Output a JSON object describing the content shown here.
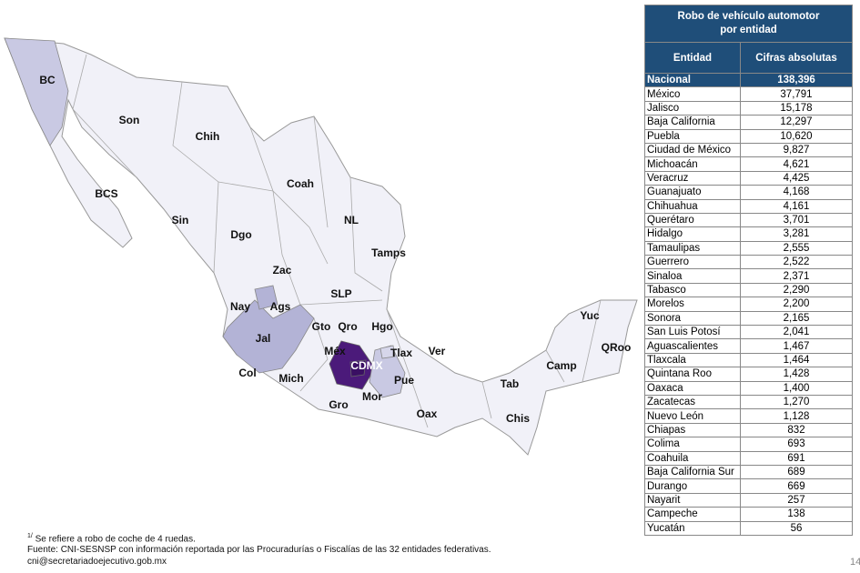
{
  "map": {
    "labels": [
      {
        "id": "bc",
        "text": "BC"
      },
      {
        "id": "son",
        "text": "Son"
      },
      {
        "id": "chih",
        "text": "Chih"
      },
      {
        "id": "bcs",
        "text": "BCS"
      },
      {
        "id": "coah",
        "text": "Coah"
      },
      {
        "id": "sin",
        "text": "Sin"
      },
      {
        "id": "dgo",
        "text": "Dgo"
      },
      {
        "id": "nl",
        "text": "NL"
      },
      {
        "id": "tamps",
        "text": "Tamps"
      },
      {
        "id": "zac",
        "text": "Zac"
      },
      {
        "id": "slp",
        "text": "SLP"
      },
      {
        "id": "nay",
        "text": "Nay"
      },
      {
        "id": "ags",
        "text": "Ags"
      },
      {
        "id": "gto",
        "text": "Gto"
      },
      {
        "id": "qro",
        "text": "Qro"
      },
      {
        "id": "hgo",
        "text": "Hgo"
      },
      {
        "id": "jal",
        "text": "Jal"
      },
      {
        "id": "mex",
        "text": "Méx"
      },
      {
        "id": "tlax",
        "text": "Tlax"
      },
      {
        "id": "ver",
        "text": "Ver"
      },
      {
        "id": "yuc",
        "text": "Yuc"
      },
      {
        "id": "qroo",
        "text": "QRoo"
      },
      {
        "id": "cdmx",
        "text": "CDMX"
      },
      {
        "id": "col",
        "text": "Col"
      },
      {
        "id": "mich",
        "text": "Mich"
      },
      {
        "id": "camp",
        "text": "Camp"
      },
      {
        "id": "pue",
        "text": "Pue"
      },
      {
        "id": "mor",
        "text": "Mor"
      },
      {
        "id": "tab",
        "text": "Tab"
      },
      {
        "id": "gro",
        "text": "Gro"
      },
      {
        "id": "oax",
        "text": "Oax"
      },
      {
        "id": "chis",
        "text": "Chis"
      }
    ],
    "colors": {
      "base": "#f1f1f8",
      "light": "#c9c9e3",
      "medium": "#b3b3d6",
      "dark": "#4b1a7a",
      "darkest": "#3a0f63"
    }
  },
  "table": {
    "title_line1": "Robo de vehículo automotor",
    "title_line2": "por entidad",
    "col_entidad": "Entidad",
    "col_cifras": "Cifras absolutas",
    "nacional": {
      "name": "Nacional",
      "value": "138,396"
    },
    "rows": [
      {
        "name": "México",
        "value": "37,791"
      },
      {
        "name": "Jalisco",
        "value": "15,178"
      },
      {
        "name": "Baja California",
        "value": "12,297"
      },
      {
        "name": "Puebla",
        "value": "10,620"
      },
      {
        "name": "Ciudad de México",
        "value": "9,827"
      },
      {
        "name": "Michoacán",
        "value": "4,621"
      },
      {
        "name": "Veracruz",
        "value": "4,425"
      },
      {
        "name": "Guanajuato",
        "value": "4,168"
      },
      {
        "name": "Chihuahua",
        "value": "4,161"
      },
      {
        "name": "Querétaro",
        "value": "3,701"
      },
      {
        "name": "Hidalgo",
        "value": "3,281"
      },
      {
        "name": "Tamaulipas",
        "value": "2,555"
      },
      {
        "name": "Guerrero",
        "value": "2,522"
      },
      {
        "name": "Sinaloa",
        "value": "2,371"
      },
      {
        "name": "Tabasco",
        "value": "2,290"
      },
      {
        "name": "Morelos",
        "value": "2,200"
      },
      {
        "name": "Sonora",
        "value": "2,165"
      },
      {
        "name": "San Luis Potosí",
        "value": "2,041"
      },
      {
        "name": "Aguascalientes",
        "value": "1,467"
      },
      {
        "name": "Tlaxcala",
        "value": "1,464"
      },
      {
        "name": "Quintana Roo",
        "value": "1,428"
      },
      {
        "name": "Oaxaca",
        "value": "1,400"
      },
      {
        "name": "Zacatecas",
        "value": "1,270"
      },
      {
        "name": "Nuevo León",
        "value": "1,128"
      },
      {
        "name": "Chiapas",
        "value": "832"
      },
      {
        "name": "Colima",
        "value": "693"
      },
      {
        "name": "Coahuila",
        "value": "691"
      },
      {
        "name": "Baja California Sur",
        "value": "689"
      },
      {
        "name": "Durango",
        "value": "669"
      },
      {
        "name": "Nayarit",
        "value": "257"
      },
      {
        "name": "Campeche",
        "value": "138"
      },
      {
        "name": "Yucatán",
        "value": "56"
      }
    ]
  },
  "footer": {
    "note_mark": "1/",
    "note": " Se refiere a robo de coche de 4 ruedas.",
    "source": "Fuente: CNI-SESNSP con información reportada por las Procuradurías o Fiscalías de las 32 entidades federativas.",
    "email": "cni@secretariadoejecutivo.gob.mx",
    "page": "14"
  }
}
